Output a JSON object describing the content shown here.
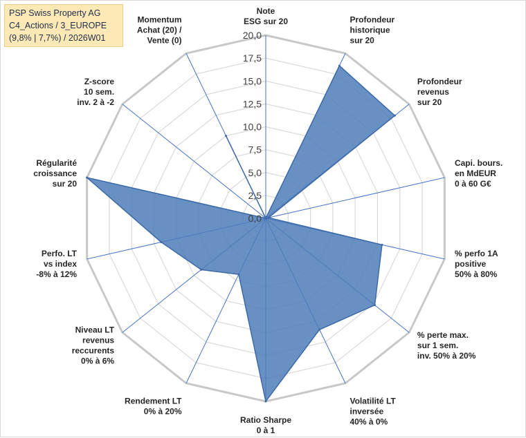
{
  "title_box": {
    "line1": "PSP Swiss Property AG",
    "line2": "C4_Actions / 3_EUROPE",
    "line3": "(9,8% | 7,7%) / 2026W01"
  },
  "colors": {
    "fill": "#4f7db8",
    "stroke": "#3c6aa8",
    "grid": "#d9d9d9",
    "outer_ring": "#c8c8c8",
    "spoke": "#4472c4"
  },
  "chart_data": {
    "type": "radar",
    "r_range": [
      0,
      20
    ],
    "r_step": 2.5,
    "tick_labels": [
      "0,0",
      "2,5",
      "5,0",
      "7,5",
      "10,0",
      "12,5",
      "15,0",
      "17,5",
      "20,0"
    ],
    "grid": true,
    "axes": [
      {
        "label": [
          "Note",
          "ESG sur 20"
        ],
        "value": 0.0
      },
      {
        "label": [
          "Profondeur",
          "historique",
          "sur 20"
        ],
        "value": 18.5
      },
      {
        "label": [
          "Profondeur",
          "revenus",
          "sur 20"
        ],
        "value": 18.0
      },
      {
        "label": [
          "Capi. bours.",
          "en MdEUR",
          "0 à 60 G€"
        ],
        "value": 0.3
      },
      {
        "label": [
          "% perfo 1A",
          "positive",
          "50% à 80%"
        ],
        "value": 13.0
      },
      {
        "label": [
          "% perte max.",
          "sur 1 sem.",
          "inv. 50% à 20%"
        ],
        "value": 15.2
      },
      {
        "label": [
          "Volatilité LT",
          "inversée",
          "40% à 0%"
        ],
        "value": 13.5
      },
      {
        "label": [
          "Ratio Sharpe",
          "0 à 1"
        ],
        "value": 20.0
      },
      {
        "label": [
          "Rendement LT",
          "0% à 20%"
        ],
        "value": 6.8
      },
      {
        "label": [
          "Niveau LT",
          "revenus",
          "reccurents",
          "0% à 6%"
        ],
        "value": 9.0
      },
      {
        "label": [
          "Perfo. LT",
          "vs index",
          "-8% à 12%"
        ],
        "value": 11.7
      },
      {
        "label": [
          "Régularité",
          "croissance",
          "sur 20"
        ],
        "value": 20.0
      },
      {
        "label": [
          "Z-score",
          "10 sem.",
          "inv. 2 à -2"
        ],
        "value": 0.0
      },
      {
        "label": [
          "Momentum",
          "Achat (20) /",
          "Vente (0)"
        ],
        "value": 10.0
      }
    ]
  }
}
